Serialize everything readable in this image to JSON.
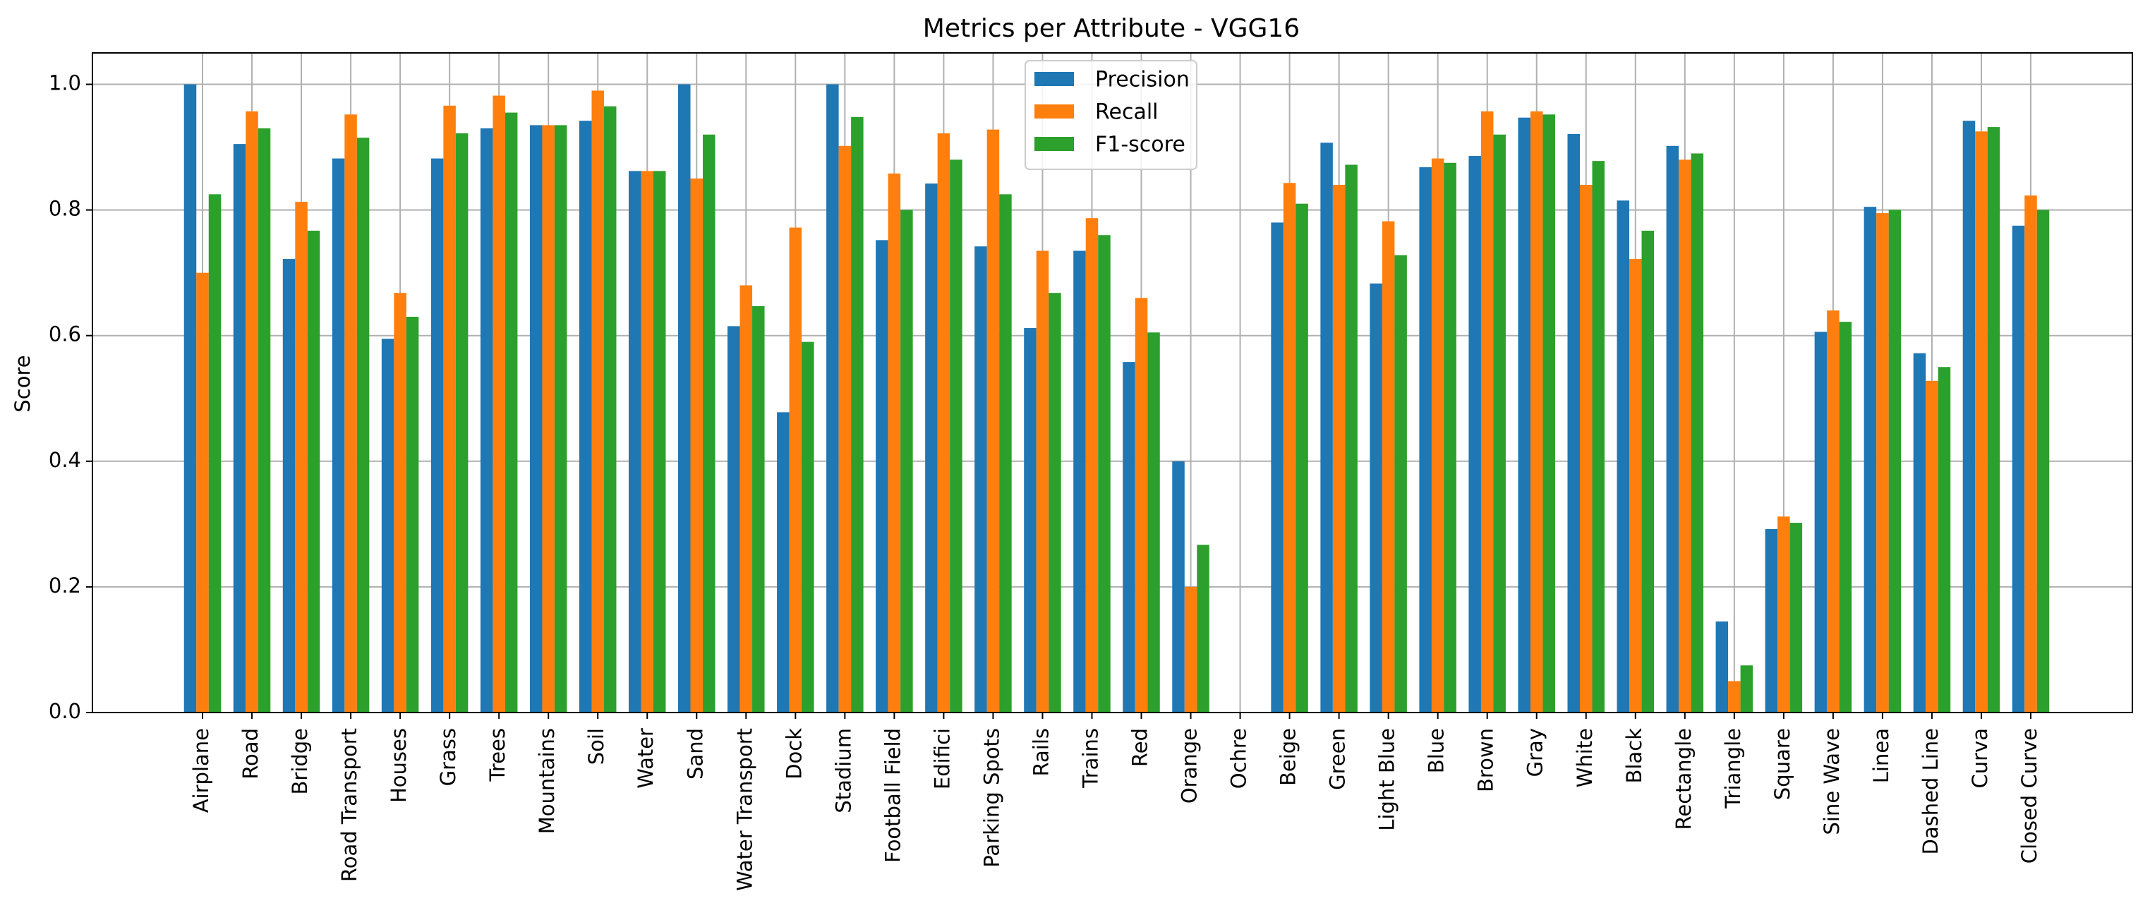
{
  "chart_data": {
    "type": "bar",
    "title": "Metrics per Attribute - VGG16",
    "xlabel": "",
    "ylabel": "Score",
    "ylim": [
      0,
      1.05
    ],
    "yticks": [
      0.0,
      0.2,
      0.4,
      0.6,
      0.8,
      1.0
    ],
    "ytick_labels": [
      "0.0",
      "0.2",
      "0.4",
      "0.6",
      "0.8",
      "1.0"
    ],
    "grid": true,
    "legend_position": "top-center",
    "categories": [
      "Airplane",
      "Road",
      "Bridge",
      "Road Transport",
      "Houses",
      "Grass",
      "Trees",
      "Mountains",
      "Soil",
      "Water",
      "Sand",
      "Water Transport",
      "Dock",
      "Stadium",
      "Football Field",
      "Edifici",
      "Parking Spots",
      "Rails",
      "Trains",
      "Red",
      "Orange",
      "Ochre",
      "Beige",
      "Green",
      "Light Blue",
      "Blue",
      "Brown",
      "Gray",
      "White",
      "Black",
      "Rectangle",
      "Triangle",
      "Square",
      "Sine Wave",
      "Linea",
      "Dashed Line",
      "Curva",
      "Closed Curve"
    ],
    "series": [
      {
        "name": "Precision",
        "color": "#1f77b4",
        "values": [
          1.0,
          0.905,
          0.722,
          0.882,
          0.595,
          0.882,
          0.93,
          0.935,
          0.942,
          0.862,
          1.0,
          0.615,
          0.478,
          1.0,
          0.752,
          0.842,
          0.742,
          0.612,
          0.735,
          0.558,
          0.4,
          0.0,
          0.78,
          0.907,
          0.683,
          0.868,
          0.886,
          0.947,
          0.921,
          0.815,
          0.902,
          0.145,
          0.292,
          0.606,
          0.805,
          0.572,
          0.942,
          0.775
        ]
      },
      {
        "name": "Recall",
        "color": "#ff7f0e",
        "values": [
          0.7,
          0.957,
          0.813,
          0.952,
          0.668,
          0.966,
          0.982,
          0.935,
          0.99,
          0.862,
          0.85,
          0.68,
          0.772,
          0.902,
          0.858,
          0.922,
          0.928,
          0.735,
          0.787,
          0.66,
          0.2,
          0.0,
          0.843,
          0.84,
          0.782,
          0.882,
          0.957,
          0.957,
          0.84,
          0.722,
          0.88,
          0.05,
          0.312,
          0.64,
          0.795,
          0.528,
          0.925,
          0.823
        ]
      },
      {
        "name": "F1-score",
        "color": "#2ca02c",
        "values": [
          0.825,
          0.93,
          0.767,
          0.915,
          0.63,
          0.922,
          0.955,
          0.935,
          0.965,
          0.862,
          0.92,
          0.647,
          0.59,
          0.948,
          0.8,
          0.88,
          0.825,
          0.668,
          0.76,
          0.605,
          0.267,
          0.0,
          0.81,
          0.872,
          0.728,
          0.875,
          0.92,
          0.952,
          0.878,
          0.767,
          0.89,
          0.075,
          0.302,
          0.622,
          0.8,
          0.55,
          0.932,
          0.8
        ]
      }
    ]
  }
}
